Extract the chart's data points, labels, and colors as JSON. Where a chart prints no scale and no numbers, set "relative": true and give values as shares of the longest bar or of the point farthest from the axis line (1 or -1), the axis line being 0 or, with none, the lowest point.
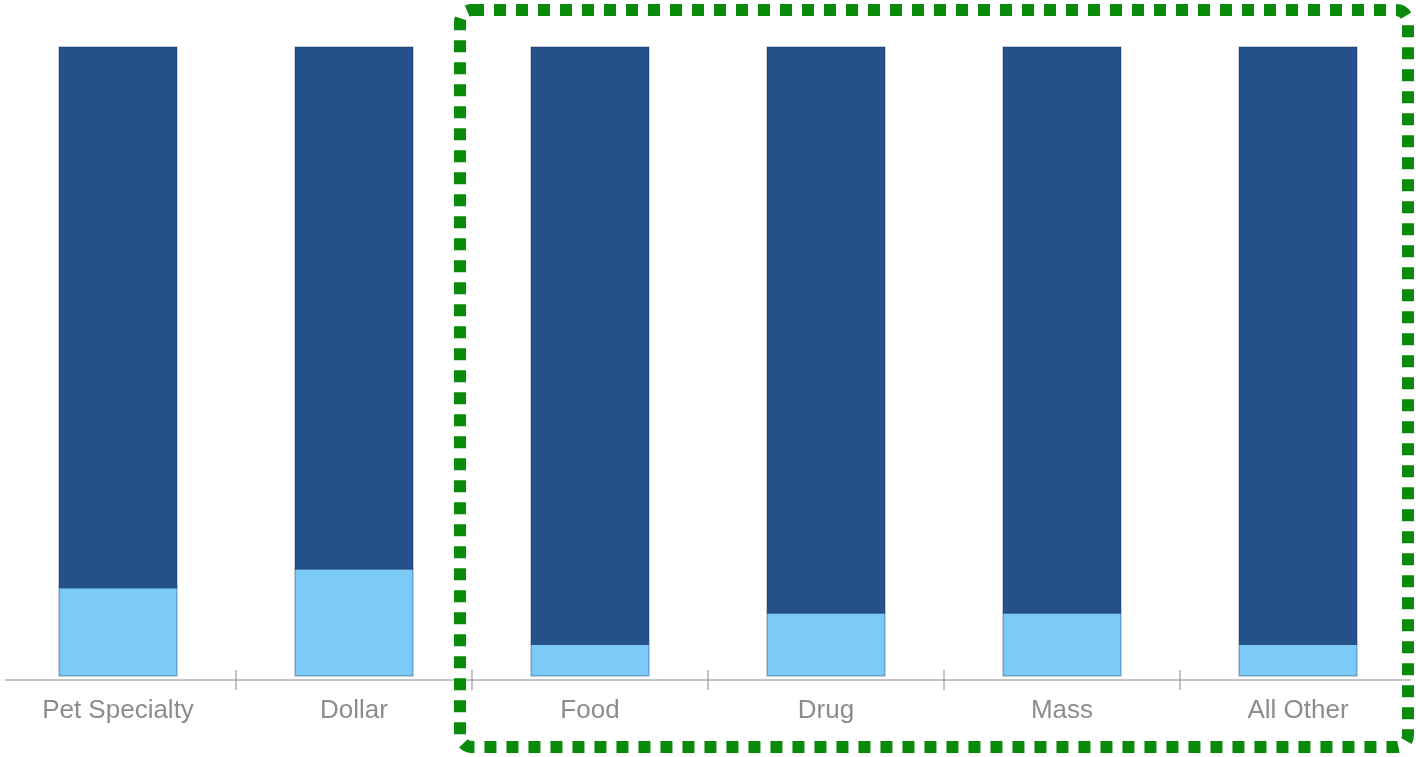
{
  "chart_data": {
    "type": "bar",
    "stacked": true,
    "relative": true,
    "categories": [
      "Pet Specialty",
      "Dollar",
      "Food",
      "Drug",
      "Mass",
      "All Other"
    ],
    "series": [
      {
        "color": "#7ccaf8",
        "values": [
          0.14,
          0.17,
          0.05,
          0.1,
          0.1,
          0.05
        ]
      },
      {
        "color": "#25518a",
        "values": [
          0.86,
          0.83,
          0.95,
          0.9,
          0.9,
          0.95
        ]
      }
    ]
  }
}
